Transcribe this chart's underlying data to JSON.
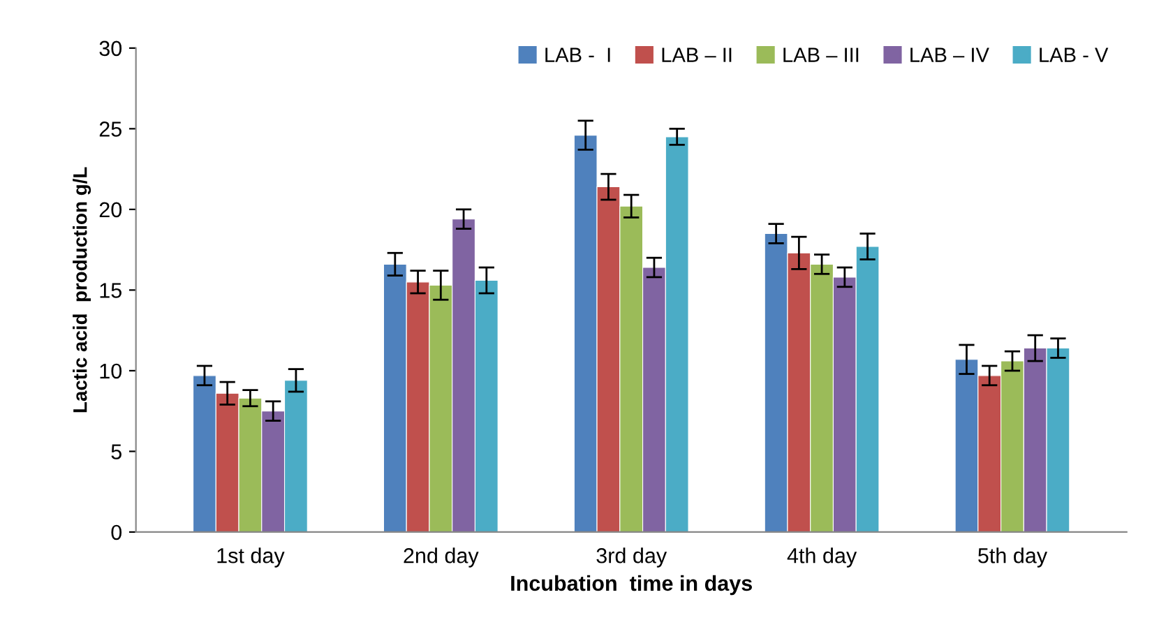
{
  "chart_data": {
    "type": "bar",
    "xlabel": "Incubation  time in days",
    "ylabel": "Lactic acid  production g/L",
    "categories": [
      "1st day",
      "2nd day",
      "3rd day",
      "4th day",
      "5th day"
    ],
    "ylim": [
      0,
      30
    ],
    "yticks": [
      0,
      5,
      10,
      15,
      20,
      25,
      30
    ],
    "grid": false,
    "legend": "top right",
    "series": [
      {
        "name": "LAB -  I",
        "color": "#4f81bd",
        "values": [
          9.7,
          16.6,
          24.6,
          18.5,
          10.7
        ],
        "errors": [
          0.6,
          0.7,
          0.9,
          0.6,
          0.9
        ]
      },
      {
        "name": "LAB – II",
        "color": "#c0504d",
        "values": [
          8.6,
          15.5,
          21.4,
          17.3,
          9.7
        ],
        "errors": [
          0.7,
          0.7,
          0.8,
          1.0,
          0.6
        ]
      },
      {
        "name": "LAB – III",
        "color": "#9bbb59",
        "values": [
          8.3,
          15.3,
          20.2,
          16.6,
          10.6
        ],
        "errors": [
          0.5,
          0.9,
          0.7,
          0.6,
          0.6
        ]
      },
      {
        "name": "LAB – IV",
        "color": "#8064a2",
        "values": [
          7.5,
          19.4,
          16.4,
          15.8,
          11.4
        ],
        "errors": [
          0.6,
          0.6,
          0.6,
          0.6,
          0.8
        ]
      },
      {
        "name": "LAB - V",
        "color": "#4bacc6",
        "values": [
          9.4,
          15.6,
          24.5,
          17.7,
          11.4
        ],
        "errors": [
          0.7,
          0.8,
          0.5,
          0.8,
          0.6
        ]
      }
    ]
  }
}
